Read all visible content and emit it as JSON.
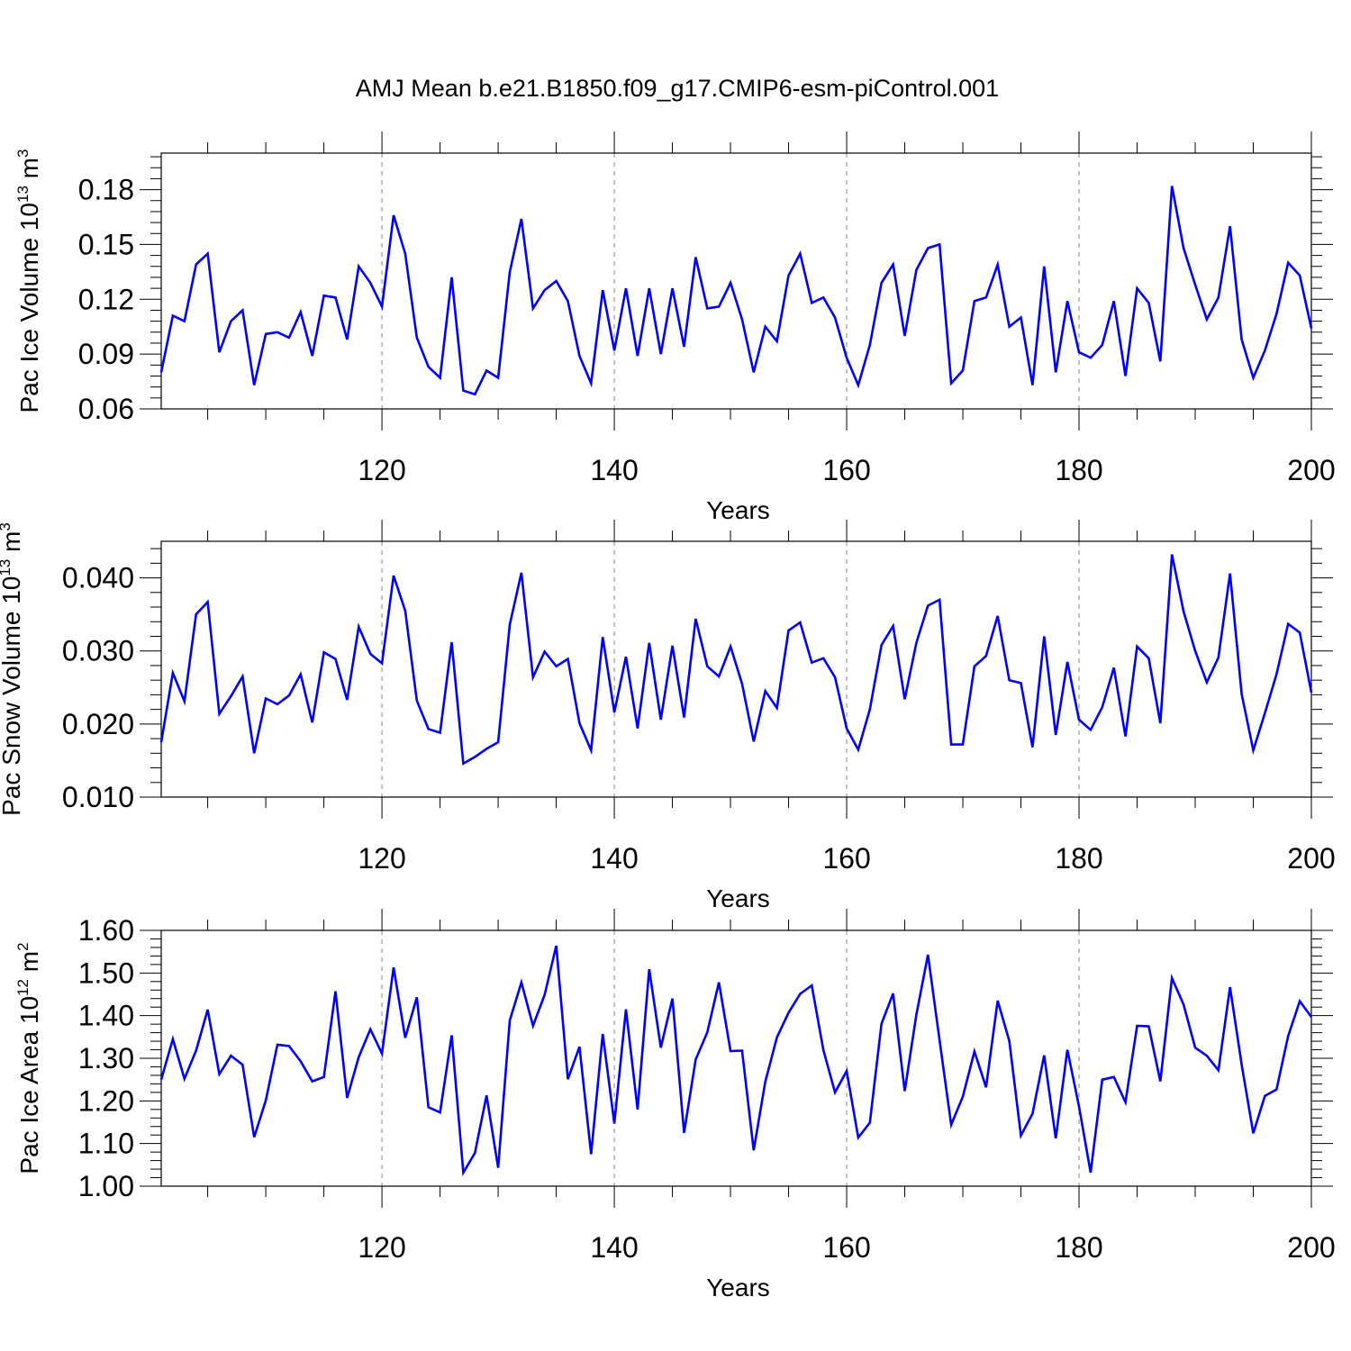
{
  "title": "AMJ Mean b.e21.B1850.f09_g17.CMIP6-esm-piControl.001",
  "colors": {
    "line": "#0000ff",
    "frame": "#000000",
    "grid": "#888888"
  },
  "chart_data": [
    {
      "type": "line",
      "ylabel": "Pac Ice Volume 10",
      "ylabel_exp": "13",
      "ylabel_unit": " m",
      "ylabel_unit_exp": "3",
      "xlabel": "Years",
      "xlim": [
        101,
        200
      ],
      "ylim": [
        0.06,
        0.2
      ],
      "xticks": [
        120,
        140,
        160,
        180,
        200
      ],
      "xtick_labels": [
        "120",
        "140",
        "160",
        "180",
        "200"
      ],
      "yticks": [
        0.06,
        0.09,
        0.12,
        0.15,
        0.18
      ],
      "ytick_labels": [
        "0.06",
        "0.09",
        "0.12",
        "0.15",
        "0.18"
      ],
      "grid": "vertical dashed at major x ticks",
      "x_start": 101,
      "values": [
        0.08,
        0.111,
        0.108,
        0.139,
        0.145,
        0.091,
        0.108,
        0.114,
        0.073,
        0.101,
        0.102,
        0.099,
        0.113,
        0.089,
        0.122,
        0.121,
        0.098,
        0.138,
        0.129,
        0.116,
        0.166,
        0.145,
        0.099,
        0.083,
        0.077,
        0.132,
        0.07,
        0.068,
        0.081,
        0.077,
        0.135,
        0.164,
        0.115,
        0.125,
        0.13,
        0.119,
        0.089,
        0.074,
        0.125,
        0.092,
        0.126,
        0.089,
        0.126,
        0.09,
        0.126,
        0.094,
        0.143,
        0.115,
        0.116,
        0.129,
        0.109,
        0.08,
        0.105,
        0.097,
        0.133,
        0.145,
        0.118,
        0.121,
        0.11,
        0.088,
        0.073,
        0.095,
        0.129,
        0.139,
        0.1,
        0.136,
        0.148,
        0.15,
        0.074,
        0.081,
        0.119,
        0.121,
        0.139,
        0.105,
        0.11,
        0.073,
        0.138,
        0.08,
        0.119,
        0.091,
        0.088,
        0.095,
        0.119,
        0.078,
        0.126,
        0.118,
        0.086,
        0.182,
        0.148,
        0.128,
        0.109,
        0.121,
        0.16,
        0.098,
        0.077,
        0.092,
        0.112,
        0.14,
        0.133,
        0.104
      ]
    },
    {
      "type": "line",
      "ylabel": "Pac Snow Volume 10",
      "ylabel_exp": "13",
      "ylabel_unit": " m",
      "ylabel_unit_exp": "3",
      "xlabel": "Years",
      "xlim": [
        101,
        200
      ],
      "ylim": [
        0.01,
        0.045
      ],
      "xticks": [
        120,
        140,
        160,
        180,
        200
      ],
      "xtick_labels": [
        "120",
        "140",
        "160",
        "180",
        "200"
      ],
      "yticks": [
        0.01,
        0.02,
        0.03,
        0.04
      ],
      "ytick_labels": [
        "0.010",
        "0.020",
        "0.030",
        "0.040"
      ],
      "grid": "vertical dashed at major x ticks",
      "x_start": 101,
      "values": [
        0.0175,
        0.027,
        0.0231,
        0.035,
        0.0367,
        0.0214,
        0.0238,
        0.0265,
        0.016,
        0.0235,
        0.0227,
        0.0239,
        0.0268,
        0.0202,
        0.0298,
        0.0289,
        0.0233,
        0.0333,
        0.0296,
        0.0283,
        0.0403,
        0.0355,
        0.0232,
        0.0193,
        0.0188,
        0.0312,
        0.0146,
        0.0155,
        0.0166,
        0.0175,
        0.0336,
        0.0407,
        0.0264,
        0.0299,
        0.0279,
        0.0289,
        0.0201,
        0.0164,
        0.0319,
        0.0216,
        0.0292,
        0.0194,
        0.0311,
        0.0206,
        0.0307,
        0.0209,
        0.0344,
        0.0279,
        0.0265,
        0.0306,
        0.0255,
        0.0176,
        0.0245,
        0.0222,
        0.0328,
        0.0339,
        0.0284,
        0.029,
        0.0264,
        0.0194,
        0.0165,
        0.022,
        0.0308,
        0.0334,
        0.0234,
        0.0311,
        0.0362,
        0.037,
        0.0172,
        0.0172,
        0.0279,
        0.0293,
        0.0348,
        0.026,
        0.0256,
        0.0168,
        0.032,
        0.0185,
        0.0285,
        0.0206,
        0.0192,
        0.0223,
        0.0277,
        0.0183,
        0.0306,
        0.029,
        0.0201,
        0.0432,
        0.0354,
        0.03,
        0.0257,
        0.0291,
        0.0406,
        0.0241,
        0.0164,
        0.0215,
        0.0268,
        0.0337,
        0.0325,
        0.0243
      ]
    },
    {
      "type": "line",
      "ylabel": "Pac Ice Area 10",
      "ylabel_exp": "12",
      "ylabel_unit": " m",
      "ylabel_unit_exp": "2",
      "xlabel": "Years",
      "xlim": [
        101,
        200
      ],
      "ylim": [
        1.0,
        1.6
      ],
      "xticks": [
        120,
        140,
        160,
        180,
        200
      ],
      "xtick_labels": [
        "120",
        "140",
        "160",
        "180",
        "200"
      ],
      "yticks": [
        1.0,
        1.1,
        1.2,
        1.3,
        1.4,
        1.5,
        1.6
      ],
      "ytick_labels": [
        "1.00",
        "1.10",
        "1.20",
        "1.30",
        "1.40",
        "1.50",
        "1.60"
      ],
      "grid": "vertical dashed at major x ticks",
      "x_start": 101,
      "values": [
        1.25,
        1.345,
        1.252,
        1.318,
        1.414,
        1.263,
        1.306,
        1.285,
        1.115,
        1.201,
        1.332,
        1.329,
        1.293,
        1.246,
        1.256,
        1.457,
        1.207,
        1.303,
        1.368,
        1.311,
        1.513,
        1.348,
        1.443,
        1.185,
        1.173,
        1.354,
        1.032,
        1.078,
        1.213,
        1.043,
        1.389,
        1.478,
        1.376,
        1.449,
        1.564,
        1.251,
        1.327,
        1.075,
        1.357,
        1.147,
        1.415,
        1.18,
        1.509,
        1.325,
        1.44,
        1.125,
        1.297,
        1.361,
        1.478,
        1.317,
        1.318,
        1.084,
        1.245,
        1.349,
        1.407,
        1.451,
        1.471,
        1.319,
        1.22,
        1.27,
        1.114,
        1.149,
        1.381,
        1.452,
        1.223,
        1.402,
        1.543,
        1.342,
        1.144,
        1.21,
        1.316,
        1.232,
        1.435,
        1.341,
        1.119,
        1.17,
        1.307,
        1.112,
        1.32,
        1.187,
        1.032,
        1.25,
        1.256,
        1.197,
        1.376,
        1.375,
        1.246,
        1.488,
        1.426,
        1.325,
        1.306,
        1.272,
        1.467,
        1.285,
        1.124,
        1.212,
        1.227,
        1.352,
        1.434,
        1.397
      ]
    }
  ]
}
